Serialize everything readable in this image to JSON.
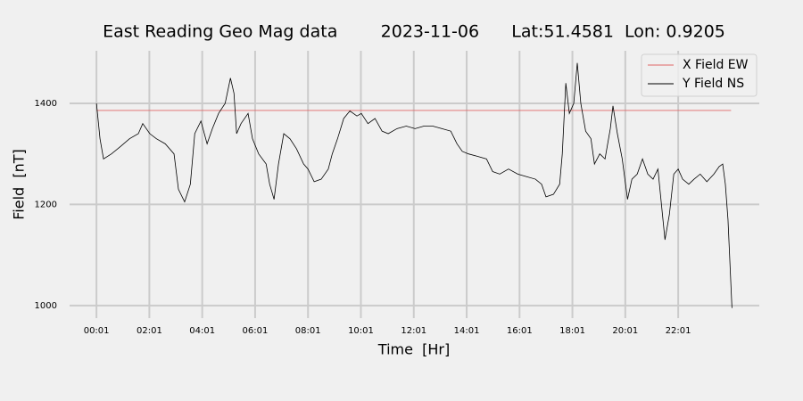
{
  "chart_data": {
    "type": "line",
    "title": "East Reading Geo Mag data        2023-11-06      Lat:51.4581  Lon: 0.9205",
    "x_label": "Time  [Hr]",
    "y_label": "Field  [nT]",
    "xlim": [
      -60,
      1505
    ],
    "ylim": [
      975,
      1504
    ],
    "xticks": [
      {
        "value": 1,
        "label": "00:01"
      },
      {
        "value": 121,
        "label": "02:01"
      },
      {
        "value": 241,
        "label": "04:01"
      },
      {
        "value": 361,
        "label": "06:01"
      },
      {
        "value": 481,
        "label": "08:01"
      },
      {
        "value": 601,
        "label": "10:01"
      },
      {
        "value": 721,
        "label": "12:01"
      },
      {
        "value": 841,
        "label": "14:01"
      },
      {
        "value": 961,
        "label": "16:01"
      },
      {
        "value": 1081,
        "label": "18:01"
      },
      {
        "value": 1201,
        "label": "20:01"
      },
      {
        "value": 1321,
        "label": "22:01"
      }
    ],
    "yticks": [
      1000,
      1200,
      1400
    ],
    "grid": true,
    "legend": "upper right",
    "series": [
      {
        "name": "X Field EW",
        "color": "#e06666",
        "x": [
          1,
          1441
        ],
        "values": [
          1386,
          1386
        ]
      },
      {
        "name": "Y Field NS",
        "color": "#000000",
        "x": [
          1,
          9,
          17,
          35,
          56,
          76,
          96,
          106,
          122,
          137,
          157,
          177,
          187,
          201,
          214,
          224,
          238,
          252,
          264,
          278,
          293,
          305,
          313,
          319,
          329,
          345,
          355,
          369,
          386,
          394,
          404,
          414,
          426,
          440,
          455,
          471,
          481,
          495,
          511,
          527,
          536,
          548,
          562,
          576,
          592,
          602,
          617,
          633,
          649,
          663,
          683,
          704,
          724,
          744,
          764,
          785,
          805,
          819,
          831,
          845,
          866,
          886,
          900,
          916,
          936,
          957,
          977,
          997,
          1011,
          1021,
          1038,
          1052,
          1058,
          1066,
          1074,
          1084,
          1092,
          1100,
          1111,
          1123,
          1131,
          1143,
          1155,
          1167,
          1173,
          1183,
          1194,
          1206,
          1216,
          1228,
          1240,
          1252,
          1264,
          1275,
          1283,
          1291,
          1301,
          1311,
          1321,
          1331,
          1345,
          1357,
          1371,
          1386,
          1402,
          1414,
          1422,
          1428,
          1434,
          1443
        ],
        "values": [
          1400,
          1330,
          1290,
          1300,
          1315,
          1330,
          1340,
          1360,
          1340,
          1330,
          1320,
          1300,
          1230,
          1205,
          1240,
          1340,
          1365,
          1320,
          1350,
          1380,
          1400,
          1450,
          1420,
          1340,
          1360,
          1380,
          1330,
          1300,
          1280,
          1240,
          1210,
          1280,
          1340,
          1330,
          1310,
          1280,
          1270,
          1245,
          1250,
          1270,
          1300,
          1330,
          1370,
          1385,
          1375,
          1380,
          1360,
          1370,
          1345,
          1340,
          1350,
          1355,
          1350,
          1355,
          1355,
          1350,
          1345,
          1320,
          1305,
          1300,
          1295,
          1290,
          1265,
          1260,
          1270,
          1260,
          1255,
          1250,
          1240,
          1215,
          1220,
          1240,
          1300,
          1440,
          1380,
          1400,
          1480,
          1400,
          1345,
          1330,
          1280,
          1300,
          1290,
          1350,
          1395,
          1340,
          1290,
          1210,
          1250,
          1260,
          1290,
          1260,
          1250,
          1270,
          1200,
          1130,
          1180,
          1260,
          1270,
          1250,
          1240,
          1250,
          1260,
          1245,
          1260,
          1275,
          1280,
          1240,
          1170,
          995
        ]
      }
    ]
  }
}
